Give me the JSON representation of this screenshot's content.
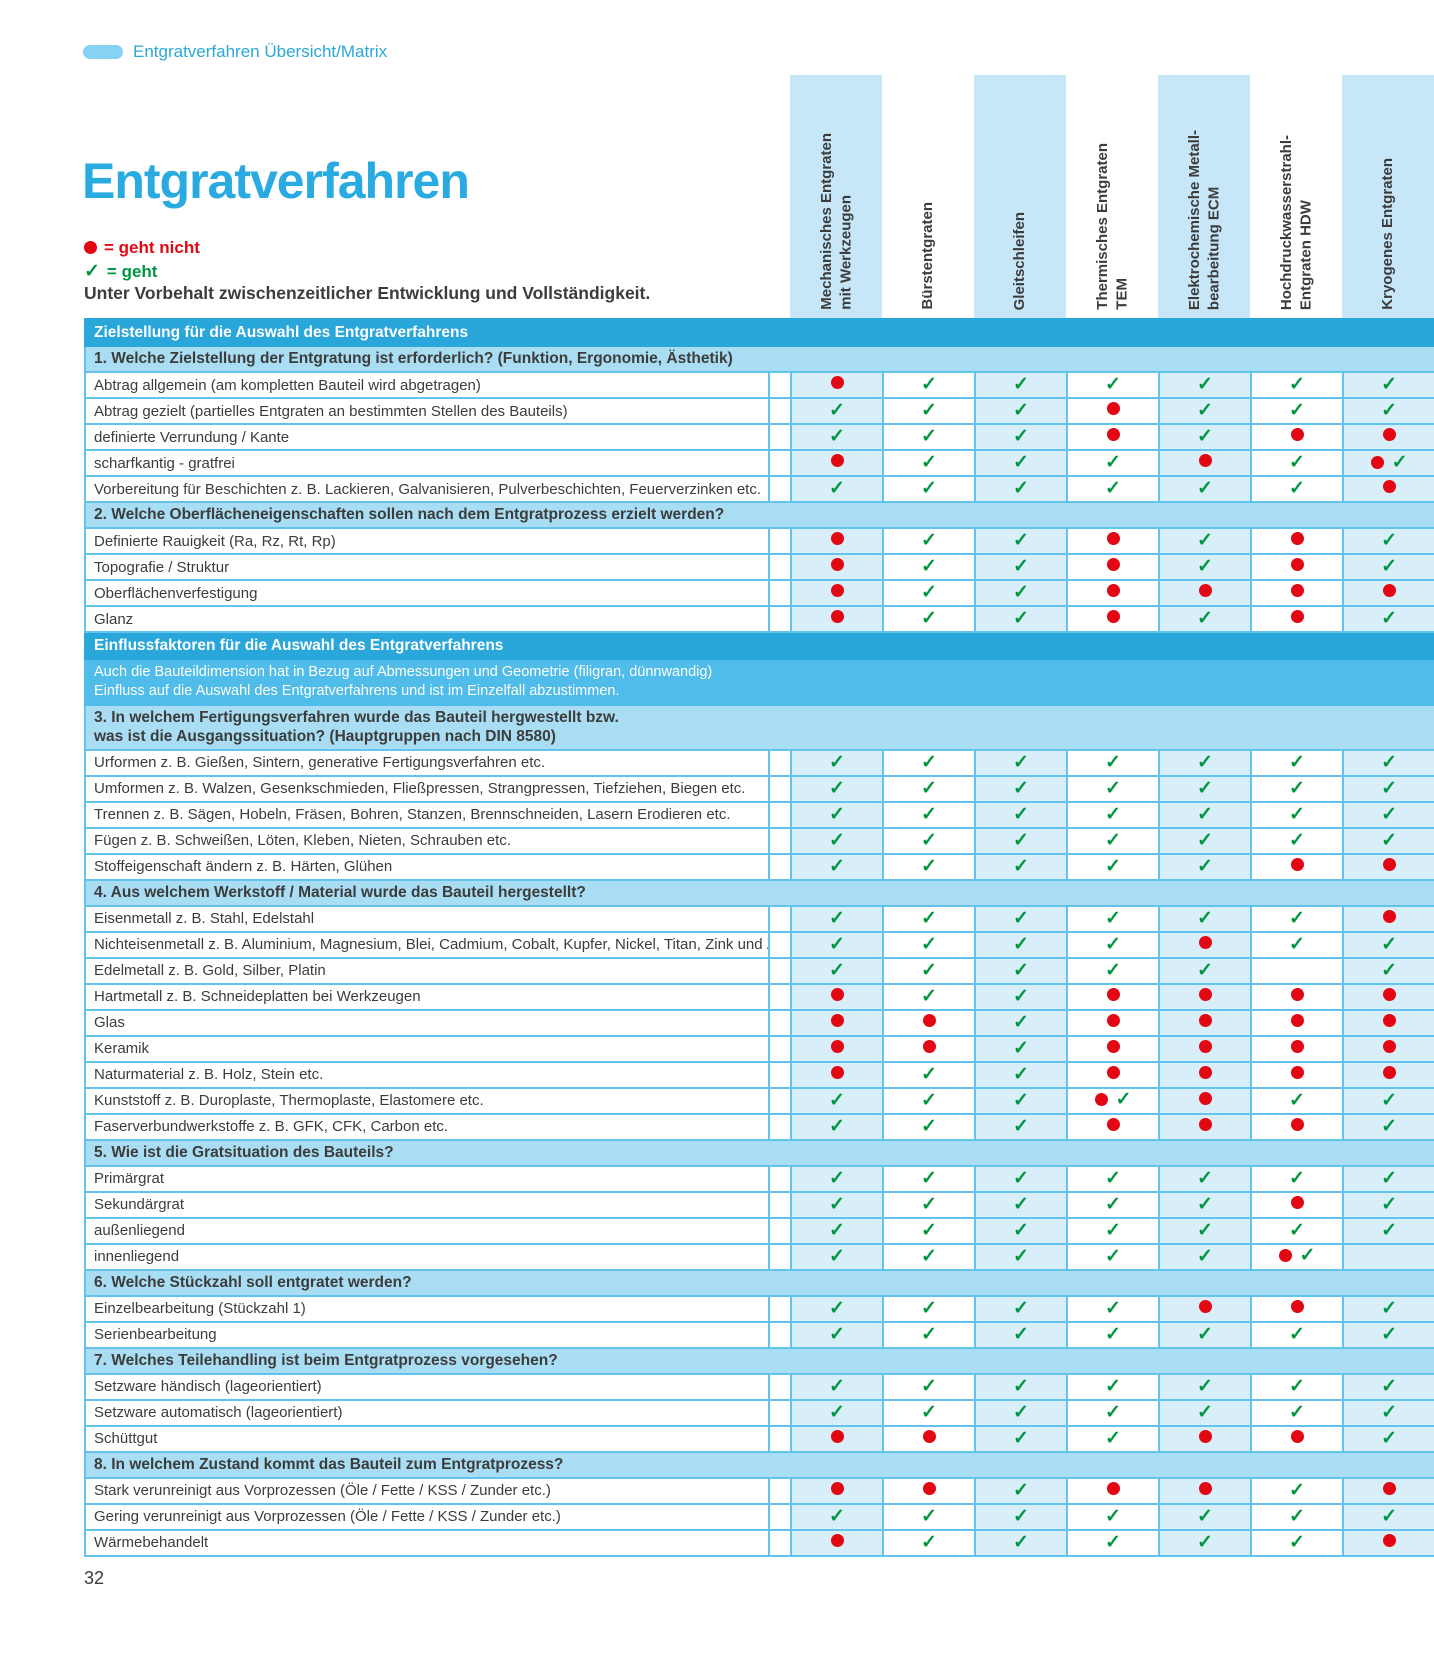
{
  "page": {
    "breadcrumb": "Entgratverfahren Übersicht/Matrix",
    "title": "Entgratverfahren",
    "page_number": "32"
  },
  "legend": {
    "not_ok_label": "= geht nicht",
    "ok_label": "= geht",
    "disclaimer": "Unter Vorbehalt zwischenzeitlicher Entwicklung und Vollständigkeit."
  },
  "colors": {
    "accent_blue": "#29abe2",
    "section_bar": "#29a6da",
    "subsection_bg": "#a9ddf4",
    "info_bg": "#4fbce9",
    "band_tint": "#d8eef9",
    "grid_border": "#62c3ec",
    "dot_red": "#e30613",
    "check_green": "#009640"
  },
  "columns": [
    {
      "label": "Mechanisches Entgraten\nmit Werkzeugen",
      "banded": true
    },
    {
      "label": "Bürstentgraten",
      "banded": false
    },
    {
      "label": "Gleitschleifen",
      "banded": true
    },
    {
      "label": "Thermisches Entgraten\nTEM",
      "banded": false
    },
    {
      "label": "Elektrochemische Metall-\nbearbeitung ECM",
      "banded": true
    },
    {
      "label": "Hochdruckwasserstrahl-\nEntgraten HDW",
      "banded": false
    },
    {
      "label": "Kryogenes Entgraten",
      "banded": true
    }
  ],
  "mark_legend_note": "c = geht (check), d = geht nicht (dot), dc = both marks shown, empty = no entry",
  "matrix": [
    {
      "type": "section",
      "label": "Zielstellung für die Auswahl des Entgratverfahrens"
    },
    {
      "type": "sub",
      "label": "1. Welche Zielstellung der Entgratung ist erforderlich? (Funktion, Ergonomie, Ästhetik)"
    },
    {
      "type": "row",
      "label": "Abtrag allgemein (am kompletten Bauteil wird abgetragen)",
      "marks": [
        "d",
        "c",
        "c",
        "c",
        "c",
        "c",
        "c"
      ]
    },
    {
      "type": "row",
      "label": "Abtrag gezielt (partielles Entgraten an bestimmten Stellen des Bauteils)",
      "marks": [
        "c",
        "c",
        "c",
        "d",
        "c",
        "c",
        "c"
      ]
    },
    {
      "type": "row",
      "label": "definierte Verrundung / Kante",
      "marks": [
        "c",
        "c",
        "c",
        "d",
        "c",
        "d",
        "d"
      ]
    },
    {
      "type": "row",
      "label": "scharfkantig - gratfrei",
      "marks": [
        "d",
        "c",
        "c",
        "c",
        "d",
        "c",
        "dc"
      ]
    },
    {
      "type": "row",
      "label": "Vorbereitung für Beschichten z. B. Lackieren, Galvanisieren, Pulverbeschichten, Feuerverzinken etc.",
      "marks": [
        "c",
        "c",
        "c",
        "c",
        "c",
        "c",
        "d"
      ]
    },
    {
      "type": "sub",
      "label": "2. Welche Oberflächeneigenschaften sollen nach dem Entgratprozess erzielt werden?"
    },
    {
      "type": "row",
      "label": "Definierte Rauigkeit (Ra, Rz, Rt, Rp)",
      "marks": [
        "d",
        "c",
        "c",
        "d",
        "c",
        "d",
        "c"
      ]
    },
    {
      "type": "row",
      "label": "Topografie / Struktur",
      "marks": [
        "d",
        "c",
        "c",
        "d",
        "c",
        "d",
        "c"
      ]
    },
    {
      "type": "row",
      "label": "Oberflächenverfestigung",
      "marks": [
        "d",
        "c",
        "c",
        "d",
        "d",
        "d",
        "d"
      ]
    },
    {
      "type": "row",
      "label": "Glanz",
      "marks": [
        "d",
        "c",
        "c",
        "d",
        "c",
        "d",
        "c"
      ]
    },
    {
      "type": "section",
      "label": "Einflussfaktoren für die Auswahl des Entgratverfahrens"
    },
    {
      "type": "info",
      "label": "Auch die Bauteildimension hat in Bezug auf Abmessungen und Geometrie (filigran, dünnwandig)\nEinfluss auf die Auswahl des Entgratverfahrens und ist im Einzelfall abzustimmen."
    },
    {
      "type": "sub",
      "label": "3. In welchem Fertigungsverfahren wurde das Bauteil hergwestellt bzw.\nwas ist die Ausgangssituation? (Hauptgruppen nach DIN 8580)"
    },
    {
      "type": "row",
      "label": "Urformen z. B. Gießen, Sintern, generative Fertigungsverfahren etc.",
      "marks": [
        "c",
        "c",
        "c",
        "c",
        "c",
        "c",
        "c"
      ]
    },
    {
      "type": "row",
      "label": "Umformen z. B. Walzen, Gesenkschmieden, Fließpressen, Strangpressen, Tiefziehen, Biegen etc.",
      "marks": [
        "c",
        "c",
        "c",
        "c",
        "c",
        "c",
        "c"
      ]
    },
    {
      "type": "row",
      "label": "Trennen z. B. Sägen, Hobeln, Fräsen, Bohren, Stanzen, Brennschneiden, Lasern Erodieren etc.",
      "marks": [
        "c",
        "c",
        "c",
        "c",
        "c",
        "c",
        "c"
      ]
    },
    {
      "type": "row",
      "label": "Fügen z. B. Schweißen, Löten, Kleben, Nieten, Schrauben etc.",
      "marks": [
        "c",
        "c",
        "c",
        "c",
        "c",
        "c",
        "c"
      ]
    },
    {
      "type": "row",
      "label": "Stoffeigenschaft ändern z. B. Härten, Glühen",
      "marks": [
        "c",
        "c",
        "c",
        "c",
        "c",
        "d",
        "d"
      ]
    },
    {
      "type": "sub",
      "label": "4. Aus welchem Werkstoff / Material wurde das Bauteil hergestellt?"
    },
    {
      "type": "row",
      "label": "Eisenmetall z. B. Stahl, Edelstahl",
      "marks": [
        "c",
        "c",
        "c",
        "c",
        "c",
        "c",
        "d"
      ]
    },
    {
      "type": "row",
      "label": "Nichteisenmetall z. B. Aluminium, Magnesium, Blei, Cadmium, Cobalt, Kupfer, Nickel, Titan, Zink und Zinn",
      "marks": [
        "c",
        "c",
        "c",
        "c",
        "d",
        "c",
        "c"
      ]
    },
    {
      "type": "row",
      "label": "Edelmetall z. B. Gold, Silber, Platin",
      "marks": [
        "c",
        "c",
        "c",
        "c",
        "c",
        "",
        "c"
      ]
    },
    {
      "type": "row",
      "label": "Hartmetall z. B. Schneideplatten bei Werkzeugen",
      "marks": [
        "d",
        "c",
        "c",
        "d",
        "d",
        "d",
        "d"
      ]
    },
    {
      "type": "row",
      "label": "Glas",
      "marks": [
        "d",
        "d",
        "c",
        "d",
        "d",
        "d",
        "d"
      ]
    },
    {
      "type": "row",
      "label": "Keramik",
      "marks": [
        "d",
        "d",
        "c",
        "d",
        "d",
        "d",
        "d"
      ]
    },
    {
      "type": "row",
      "label": "Naturmaterial z. B. Holz, Stein etc.",
      "marks": [
        "d",
        "c",
        "c",
        "d",
        "d",
        "d",
        "d"
      ]
    },
    {
      "type": "row",
      "label": "Kunststoff z. B. Duroplaste, Thermoplaste, Elastomere etc.",
      "marks": [
        "c",
        "c",
        "c",
        "dc",
        "d",
        "c",
        "c"
      ]
    },
    {
      "type": "row",
      "label": "Faserverbundwerkstoffe z. B. GFK, CFK, Carbon etc.",
      "marks": [
        "c",
        "c",
        "c",
        "d",
        "d",
        "d",
        "c"
      ]
    },
    {
      "type": "sub",
      "label": "5. Wie ist die Gratsituation des Bauteils?"
    },
    {
      "type": "row",
      "label": "Primärgrat",
      "marks": [
        "c",
        "c",
        "c",
        "c",
        "c",
        "c",
        "c"
      ]
    },
    {
      "type": "row",
      "label": "Sekundärgrat",
      "marks": [
        "c",
        "c",
        "c",
        "c",
        "c",
        "d",
        "c"
      ]
    },
    {
      "type": "row",
      "label": "außenliegend",
      "marks": [
        "c",
        "c",
        "c",
        "c",
        "c",
        "c",
        "c"
      ]
    },
    {
      "type": "row",
      "label": "innenliegend",
      "marks": [
        "c",
        "c",
        "c",
        "c",
        "c",
        "dc",
        ""
      ]
    },
    {
      "type": "sub",
      "label": "6. Welche Stückzahl soll entgratet werden?"
    },
    {
      "type": "row",
      "label": "Einzelbearbeitung (Stückzahl 1)",
      "marks": [
        "c",
        "c",
        "c",
        "c",
        "d",
        "d",
        "c"
      ]
    },
    {
      "type": "row",
      "label": "Serienbearbeitung",
      "marks": [
        "c",
        "c",
        "c",
        "c",
        "c",
        "c",
        "c"
      ]
    },
    {
      "type": "sub",
      "label": "7. Welches Teilehandling ist beim Entgratprozess vorgesehen?"
    },
    {
      "type": "row",
      "label": "Setzware händisch (lageorientiert)",
      "marks": [
        "c",
        "c",
        "c",
        "c",
        "c",
        "c",
        "c"
      ]
    },
    {
      "type": "row",
      "label": "Setzware automatisch (lageorientiert)",
      "marks": [
        "c",
        "c",
        "c",
        "c",
        "c",
        "c",
        "c"
      ]
    },
    {
      "type": "row",
      "label": "Schüttgut",
      "marks": [
        "d",
        "d",
        "c",
        "c",
        "d",
        "d",
        "c"
      ]
    },
    {
      "type": "sub",
      "label": "8. In welchem Zustand kommt das Bauteil zum Entgratprozess?"
    },
    {
      "type": "row",
      "label": "Stark verunreinigt aus Vorprozessen (Öle / Fette / KSS / Zunder etc.)",
      "marks": [
        "d",
        "d",
        "c",
        "d",
        "d",
        "c",
        "d"
      ]
    },
    {
      "type": "row",
      "label": "Gering verunreinigt aus Vorprozessen (Öle / Fette / KSS / Zunder etc.)",
      "marks": [
        "c",
        "c",
        "c",
        "c",
        "c",
        "c",
        "c"
      ]
    },
    {
      "type": "row",
      "label": "Wärmebehandelt",
      "marks": [
        "d",
        "c",
        "c",
        "c",
        "c",
        "c",
        "d"
      ]
    }
  ]
}
